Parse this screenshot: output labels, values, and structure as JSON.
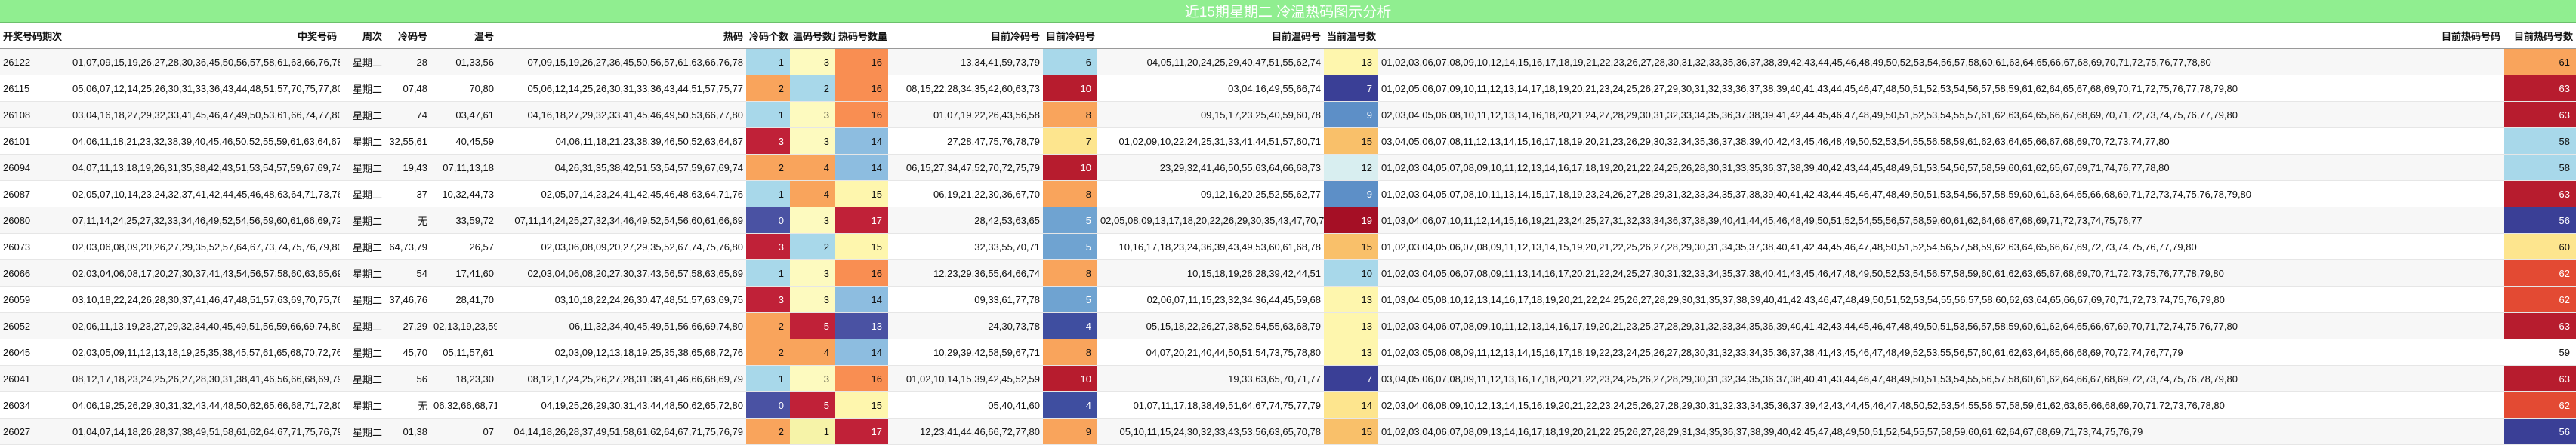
{
  "title": "近15期星期二 冷温热码图示分析",
  "headers": [
    "开奖号码期次",
    "中奖号码",
    "周次",
    "冷码号",
    "温号",
    "热码",
    "冷码个数",
    "温码号数量",
    "热码号数量",
    "目前冷码号",
    "目前冷码号",
    "目前温码号",
    "当前温号数",
    "目前热码号码",
    "目前热码号数"
  ],
  "rows": [
    [
      "26122",
      "01,07,09,15,19,26,27,28,30,36,45,50,56,57,58,61,63,66,76,78",
      "星期二",
      "28",
      "01,33,56",
      "07,09,15,19,26,27,36,45,50,56,57,61,63,66,76,78",
      "1",
      "3",
      "16",
      "13,34,41,59,73,79",
      "6",
      "04,05,11,20,24,25,29,40,47,51,55,62,74",
      "13",
      "01,02,03,06,07,08,09,10,12,14,15,16,17,18,19,21,22,23,26,27,28,30,31,32,33,35,36,37,38,39,42,43,44,45,46,48,49,50,52,53,54,56,57,58,60,61,63,64,65,66,67,68,69,70,71,72,75,76,77,78,80",
      "61"
    ],
    [
      "26115",
      "05,06,07,12,14,25,26,30,31,33,36,43,44,48,51,57,70,75,77,80",
      "星期二",
      "07,48",
      "70,80",
      "05,06,12,14,25,26,30,31,33,36,43,44,51,57,75,77",
      "2",
      "2",
      "16",
      "08,15,22,28,34,35,42,60,63,73",
      "10",
      "03,04,16,49,55,66,74",
      "7",
      "01,02,05,06,07,09,10,11,12,13,14,17,18,19,20,21,23,24,25,26,27,29,30,31,32,33,36,37,38,39,40,41,43,44,45,46,47,48,50,51,52,53,54,56,57,58,59,61,62,64,65,67,68,69,70,71,72,75,76,77,78,79,80",
      "63"
    ],
    [
      "26108",
      "03,04,16,18,27,29,32,33,41,45,46,47,49,50,53,61,66,74,77,80",
      "星期二",
      "74",
      "03,47,61",
      "04,16,18,27,29,32,33,41,45,46,49,50,53,66,77,80",
      "1",
      "3",
      "16",
      "01,07,19,22,26,43,56,58",
      "8",
      "09,15,17,23,25,40,59,60,78",
      "9",
      "02,03,04,05,06,08,10,11,12,13,14,16,18,20,21,24,27,28,29,30,31,32,33,34,35,36,37,38,39,41,42,44,45,46,47,48,49,50,51,52,53,54,55,57,61,62,63,64,65,66,67,68,69,70,71,72,73,74,75,76,77,79,80",
      "63"
    ],
    [
      "26101",
      "04,06,11,18,21,23,32,38,39,40,45,46,50,52,55,59,61,63,64,67",
      "星期二",
      "32,55,61",
      "40,45,59",
      "04,06,11,18,21,23,38,39,46,50,52,63,64,67",
      "3",
      "3",
      "14",
      "27,28,47,75,76,78,79",
      "7",
      "01,02,09,10,22,24,25,31,33,41,44,51,57,60,71",
      "15",
      "03,04,05,06,07,08,11,12,13,14,15,16,17,18,19,20,21,23,26,29,30,32,34,35,36,37,38,39,40,42,43,45,46,48,49,50,52,53,54,55,56,58,59,61,62,63,64,65,66,67,68,69,70,72,73,74,77,80",
      "58"
    ],
    [
      "26094",
      "04,07,11,13,18,19,26,31,35,38,42,43,51,53,54,57,59,67,69,74",
      "星期二",
      "19,43",
      "07,11,13,18",
      "04,26,31,35,38,42,51,53,54,57,59,67,69,74",
      "2",
      "4",
      "14",
      "06,15,27,34,47,52,70,72,75,79",
      "10",
      "23,29,32,41,46,50,55,63,64,66,68,73",
      "12",
      "01,02,03,04,05,07,08,09,10,11,12,13,14,16,17,18,19,20,21,22,24,25,26,28,30,31,33,35,36,37,38,39,40,42,43,44,45,48,49,51,53,54,56,57,58,59,60,61,62,65,67,69,71,74,76,77,78,80",
      "58"
    ],
    [
      "26087",
      "02,05,07,10,14,23,24,32,37,41,42,44,45,46,48,63,64,71,73,76",
      "星期二",
      "37",
      "10,32,44,73",
      "02,05,07,14,23,24,41,42,45,46,48,63,64,71,76",
      "1",
      "4",
      "15",
      "06,19,21,22,30,36,67,70",
      "8",
      "09,12,16,20,25,52,55,62,77",
      "9",
      "01,02,03,04,05,07,08,10,11,13,14,15,17,18,19,23,24,26,27,28,29,31,32,33,34,35,37,38,39,40,41,42,43,44,45,46,47,48,49,50,51,53,54,56,57,58,59,60,61,63,64,65,66,68,69,71,72,73,74,75,76,78,79,80",
      "63"
    ],
    [
      "26080",
      "07,11,14,24,25,27,32,33,34,46,49,52,54,56,59,60,61,66,69,72",
      "星期二",
      "无",
      "33,59,72",
      "07,11,14,24,25,27,32,34,46,49,52,54,56,60,61,66,69",
      "0",
      "3",
      "17",
      "28,42,53,63,65",
      "5",
      "02,05,08,09,13,17,18,20,22,26,29,30,35,43,47,70,78,79,80",
      "19",
      "01,03,04,06,07,10,11,12,14,15,16,19,21,23,24,25,27,31,32,33,34,36,37,38,39,40,41,44,45,46,48,49,50,51,52,54,55,56,57,58,59,60,61,62,64,66,67,68,69,71,72,73,74,75,76,77",
      "56"
    ],
    [
      "26073",
      "02,03,06,08,09,20,26,27,29,35,52,57,64,67,73,74,75,76,79,80",
      "星期二",
      "64,73,79",
      "26,57",
      "02,03,06,08,09,20,27,29,35,52,67,74,75,76,80",
      "3",
      "2",
      "15",
      "32,33,55,70,71",
      "5",
      "10,16,17,18,23,24,36,39,43,49,53,60,61,68,78",
      "15",
      "01,02,03,04,05,06,07,08,09,11,12,13,14,15,19,20,21,22,25,26,27,28,29,30,31,34,35,37,38,40,41,42,44,45,46,47,48,50,51,52,54,56,57,58,59,62,63,64,65,66,67,69,72,73,74,75,76,77,79,80",
      "60"
    ],
    [
      "26066",
      "02,03,04,06,08,17,20,27,30,37,41,43,54,56,57,58,60,63,65,69",
      "星期二",
      "54",
      "17,41,60",
      "02,03,04,06,08,20,27,30,37,43,56,57,58,63,65,69",
      "1",
      "3",
      "16",
      "12,23,29,36,55,64,66,74",
      "8",
      "10,15,18,19,26,28,39,42,44,51",
      "10",
      "01,02,03,04,05,06,07,08,09,11,13,14,16,17,20,21,22,24,25,27,30,31,32,33,34,35,37,38,40,41,43,45,46,47,48,49,50,52,53,54,56,57,58,59,60,61,62,63,65,67,68,69,70,71,72,73,75,76,77,78,79,80",
      "62"
    ],
    [
      "26059",
      "03,10,18,22,24,26,28,30,37,41,46,47,48,51,57,63,69,70,75,76",
      "星期二",
      "37,46,76",
      "28,41,70",
      "03,10,18,22,24,26,30,47,48,51,57,63,69,75",
      "3",
      "3",
      "14",
      "09,33,61,77,78",
      "5",
      "02,06,07,11,15,23,32,34,36,44,45,59,68",
      "13",
      "01,03,04,05,08,10,12,13,14,16,17,18,19,20,21,22,24,25,26,27,28,29,30,31,35,37,38,39,40,41,42,43,46,47,48,49,50,51,52,53,54,55,56,57,58,60,62,63,64,65,66,67,69,70,71,72,73,74,75,76,79,80",
      "62"
    ],
    [
      "26052",
      "02,06,11,13,19,23,27,29,32,34,40,45,49,51,56,59,66,69,74,80",
      "星期二",
      "27,29",
      "02,13,19,23,59",
      "06,11,32,34,40,45,49,51,56,66,69,74,80",
      "2",
      "5",
      "13",
      "24,30,73,78",
      "4",
      "05,15,18,22,26,27,38,52,54,55,63,68,79",
      "13",
      "01,02,03,04,06,07,08,09,10,11,12,13,14,16,17,19,20,21,23,25,27,28,29,31,32,33,34,35,36,39,40,41,42,43,44,45,46,47,48,49,50,51,53,56,57,58,59,60,61,62,64,65,66,67,69,70,71,72,74,75,76,77,80",
      "63"
    ],
    [
      "26045",
      "02,03,05,09,11,12,13,18,19,25,35,38,45,57,61,65,68,70,72,76",
      "星期二",
      "45,70",
      "05,11,57,61",
      "02,03,09,12,13,18,19,25,35,38,65,68,72,76",
      "2",
      "4",
      "14",
      "10,29,39,42,58,59,67,71",
      "8",
      "04,07,20,21,40,44,50,51,54,73,75,78,80",
      "13",
      "01,02,03,05,06,08,09,11,12,13,14,15,16,17,18,19,22,23,24,25,26,27,28,30,31,32,33,34,35,36,37,38,41,43,45,46,47,48,49,52,53,55,56,57,60,61,62,63,64,65,66,68,69,70,72,74,76,77,79",
      "59"
    ],
    [
      "26041",
      "08,12,17,18,23,24,25,26,27,28,30,31,38,41,46,56,66,68,69,79",
      "星期二",
      "56",
      "18,23,30",
      "08,12,17,24,25,26,27,28,31,38,41,46,66,68,69,79",
      "1",
      "3",
      "16",
      "01,02,10,14,15,39,42,45,52,59",
      "10",
      "19,33,63,65,70,71,77",
      "7",
      "03,04,05,06,07,08,09,11,12,13,16,17,18,20,21,22,23,24,25,26,27,28,29,30,31,32,34,35,36,37,38,40,41,43,44,46,47,48,49,50,51,53,54,55,56,57,58,60,61,62,64,66,67,68,69,72,73,74,75,76,78,79,80",
      "63"
    ],
    [
      "26034",
      "04,06,19,25,26,29,30,31,32,43,44,48,50,62,65,66,68,71,72,80",
      "星期二",
      "无",
      "06,32,66,68,71",
      "04,19,25,26,29,30,31,43,44,48,50,62,65,72,80",
      "0",
      "5",
      "15",
      "05,40,41,60",
      "4",
      "01,07,11,17,18,38,49,51,64,67,74,75,77,79",
      "14",
      "02,03,04,06,08,09,10,12,13,14,15,16,19,20,21,22,23,24,25,26,27,28,29,30,31,32,33,34,35,36,37,39,42,43,44,45,46,47,48,50,52,53,54,55,56,57,58,59,61,62,63,65,66,68,69,70,71,72,73,76,78,80",
      "62"
    ],
    [
      "26027",
      "01,04,07,14,18,26,28,37,38,49,51,58,61,62,64,67,71,75,76,79",
      "星期二",
      "01,38",
      "07",
      "04,14,18,26,28,37,49,51,58,61,62,64,67,71,75,76,79",
      "2",
      "1",
      "17",
      "12,23,41,44,46,66,72,77,80",
      "9",
      "05,10,11,15,24,30,32,33,43,53,56,63,65,70,78",
      "15",
      "01,02,03,04,06,07,08,09,13,14,16,17,18,19,20,21,22,25,26,27,28,29,31,34,35,36,37,38,39,40,42,45,47,48,49,50,51,52,54,55,57,58,59,60,61,62,64,67,68,69,71,73,74,75,76,79",
      "56"
    ]
  ],
  "colors": {
    "title_bg": "#90ee90",
    "cold_scale": {
      "0": "#4a52a3",
      "1": "#a8d8ea",
      "2": "#f9a45c",
      "3": "#c02138"
    },
    "warm_scale": {
      "1": "#f6f3a8",
      "2": "#a8d8ea",
      "3": "#fdfabf",
      "4": "#f9a45c",
      "5": "#c02138"
    },
    "hot_scale": {
      "13": "#4a52a3",
      "14": "#8dbde0",
      "15": "#fef6ad",
      "16": "#f98e52",
      "17": "#c02138"
    },
    "cur_cold_scale": {
      "4": "#3f4ea0",
      "5": "#6fa3d1",
      "6": "#a8d8ea",
      "7": "#fde58e",
      "8": "#f9a45c",
      "9": "#f9a45c",
      "10": "#b71c2e"
    },
    "cur_warm_scale": {
      "7": "#3a3f96",
      "9": "#5d8fc7",
      "10": "#a8d8ea",
      "12": "#d8eef0",
      "13": "#fef6ad",
      "14": "#fde58e",
      "15": "#f9c06a",
      "19": "#a50f25"
    },
    "cur_hot_scale": {
      "56": "#3a3f96",
      "58": "#a8d8ea",
      "59": "#ffffff",
      "60": "#fde58e",
      "61": "#f9a45c",
      "62": "#e34a33",
      "63": "#b71c2e"
    }
  }
}
